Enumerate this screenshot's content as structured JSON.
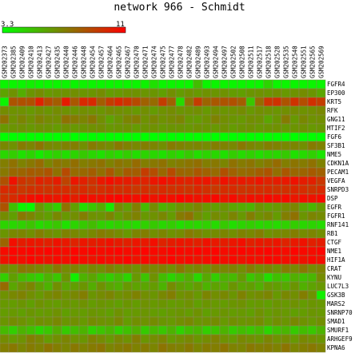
{
  "chart_data": {
    "type": "heatmap",
    "title": "network 966 - Schmidt",
    "color_scale": {
      "min": 3.3,
      "max": 11,
      "min_label": "3.3",
      "max_label": "11",
      "low_color": "#00ff00",
      "high_color": "#ff0000"
    },
    "columns": [
      "GSM202373",
      "GSM202385",
      "GSM202409",
      "GSM202410",
      "GSM202413",
      "GSM202427",
      "GSM202435",
      "GSM202440",
      "GSM202446",
      "GSM202448",
      "GSM202454",
      "GSM202457",
      "GSM202464",
      "GSM202465",
      "GSM202467",
      "GSM202470",
      "GSM202471",
      "GSM202474",
      "GSM202475",
      "GSM202477",
      "GSM202478",
      "GSM202482",
      "GSM202489",
      "GSM202493",
      "GSM202494",
      "GSM202497",
      "GSM202502",
      "GSM202508",
      "GSM202511",
      "GSM202517",
      "GSM202518",
      "GSM202528",
      "GSM202535",
      "GSM202540",
      "GSM202551",
      "GSM202565",
      "GSM202569"
    ],
    "rows": [
      "FGFR4",
      "EP300",
      "KRT5",
      "RFK",
      "GNG11",
      "MTIF2",
      "FGF6",
      "SF3B1",
      "NME5",
      "CDKN1A",
      "PECAM1",
      "VEGFA",
      "SNRPD3",
      "DSP",
      "EGFR",
      "FGFR1",
      "RNF141",
      "RB1",
      "CTGF",
      "NME1",
      "HIF1A",
      "CRAT",
      "KYNU",
      "LUC7L3",
      "GSK3B",
      "MARS2",
      "SNRNP70",
      "SMAD1",
      "SMURF1",
      "ARHGEF9",
      "KPNA6"
    ],
    "values": [
      [
        3.6,
        3.6,
        3.6,
        3.8,
        3.6,
        3.6,
        3.6,
        3.6,
        3.6,
        3.7,
        3.6,
        3.6,
        3.6,
        3.6,
        3.6,
        3.6,
        3.7,
        4.2,
        3.6,
        3.6,
        3.6,
        3.6,
        5.3,
        3.6,
        3.6,
        3.6,
        3.6,
        3.6,
        3.6,
        3.6,
        4.6,
        3.6,
        3.6,
        3.6,
        3.6,
        3.6,
        3.6
      ],
      [
        6.1,
        6.6,
        5.8,
        6.5,
        6.8,
        6.4,
        6.5,
        6.6,
        6.7,
        6.5,
        6.5,
        6.8,
        6.3,
        6.4,
        6.6,
        6.6,
        6.5,
        6.5,
        6.2,
        6.7,
        6.3,
        6.6,
        6.4,
        6.6,
        6.5,
        6.6,
        6.3,
        6.2,
        6.5,
        6.6,
        6.5,
        6.7,
        6.4,
        6.6,
        6.8,
        6.5,
        6.0
      ],
      [
        3.6,
        8.5,
        8.6,
        8.6,
        10.0,
        8.8,
        8.2,
        10.2,
        8.4,
        9.8,
        9.8,
        8.2,
        9.2,
        9.8,
        9.4,
        8.8,
        8.1,
        7.8,
        9.2,
        8.1,
        4.4,
        7.5,
        9.2,
        8.0,
        8.4,
        8.5,
        8.6,
        8.2,
        5.0,
        7.8,
        9.4,
        9.5,
        8.5,
        9.5,
        8.7,
        9.6,
        9.2
      ],
      [
        6.8,
        6.6,
        6.6,
        6.4,
        6.7,
        6.5,
        6.8,
        6.6,
        6.5,
        6.7,
        6.6,
        6.5,
        6.8,
        6.7,
        6.6,
        6.4,
        6.7,
        6.3,
        6.6,
        6.8,
        6.5,
        6.6,
        6.7,
        6.4,
        6.7,
        6.5,
        6.6,
        6.8,
        6.4,
        6.7,
        6.6,
        6.5,
        6.7,
        6.8,
        6.6,
        6.7,
        6.9
      ],
      [
        7.6,
        6.6,
        7.0,
        6.6,
        7.1,
        6.8,
        6.7,
        7.6,
        7.3,
        7.0,
        7.4,
        6.7,
        6.1,
        6.5,
        7.0,
        7.2,
        6.6,
        6.9,
        6.6,
        6.8,
        7.0,
        6.4,
        6.3,
        6.6,
        7.1,
        6.7,
        6.5,
        6.4,
        6.7,
        6.6,
        6.0,
        6.5,
        7.3,
        6.4,
        6.9,
        6.6,
        6.7
      ],
      [
        6.4,
        6.5,
        6.6,
        6.4,
        6.6,
        6.5,
        6.3,
        6.6,
        6.4,
        6.5,
        6.6,
        6.7,
        6.4,
        6.5,
        6.6,
        6.3,
        6.5,
        6.6,
        6.4,
        6.5,
        6.5,
        6.4,
        6.6,
        6.5,
        6.4,
        6.6,
        6.3,
        6.5,
        6.6,
        6.4,
        6.5,
        6.6,
        6.4,
        6.5,
        6.6,
        6.4,
        6.5
      ],
      [
        3.3,
        3.3,
        3.3,
        3.3,
        3.3,
        3.3,
        3.3,
        3.3,
        3.3,
        3.3,
        3.3,
        3.3,
        3.3,
        3.3,
        3.3,
        3.3,
        3.3,
        3.3,
        3.3,
        3.3,
        3.3,
        3.3,
        3.3,
        3.3,
        3.3,
        3.3,
        3.3,
        3.3,
        3.3,
        3.3,
        3.3,
        3.3,
        3.3,
        3.3,
        3.3,
        3.3,
        3.3
      ],
      [
        6.9,
        6.6,
        7.3,
        7.0,
        7.5,
        6.9,
        6.8,
        7.1,
        7.2,
        6.7,
        7.3,
        7.0,
        6.8,
        7.4,
        7.1,
        6.9,
        7.2,
        7.0,
        6.7,
        7.3,
        7.1,
        6.9,
        7.0,
        6.8,
        7.2,
        7.1,
        6.9,
        7.4,
        7.0,
        6.8,
        7.2,
        7.1,
        6.9,
        7.0,
        6.7,
        7.3,
        7.1
      ],
      [
        4.5,
        4.8,
        4.2,
        4.6,
        3.9,
        4.4,
        4.7,
        4.3,
        4.6,
        4.9,
        4.5,
        4.2,
        4.7,
        4.4,
        4.8,
        4.3,
        4.6,
        4.5,
        4.2,
        4.7,
        4.4,
        4.9,
        4.3,
        4.6,
        4.5,
        4.2,
        4.8,
        4.4,
        4.7,
        4.3,
        4.6,
        4.5,
        4.9,
        4.2,
        4.4,
        4.7,
        4.1
      ],
      [
        7.2,
        7.6,
        7.1,
        7.4,
        7.8,
        7.0,
        7.5,
        7.3,
        7.7,
        7.2,
        7.4,
        7.6,
        7.1,
        7.5,
        7.3,
        7.8,
        7.2,
        7.4,
        7.6,
        7.1,
        7.3,
        7.5,
        7.7,
        7.2,
        7.4,
        7.0,
        7.6,
        7.3,
        7.5,
        7.1,
        7.4,
        7.8,
        7.2,
        7.5,
        7.3,
        7.6,
        7.1
      ],
      [
        7.4,
        7.9,
        8.0,
        8.3,
        8.2,
        8.5,
        7.6,
        8.8,
        7.8,
        7.9,
        8.2,
        7.7,
        8.4,
        7.6,
        8.3,
        8.2,
        9.2,
        8.7,
        7.9,
        8.8,
        8.0,
        7.9,
        8.4,
        8.1,
        7.8,
        8.6,
        8.1,
        7.8,
        7.9,
        8.2,
        8.5,
        7.7,
        8.4,
        7.9,
        8.0,
        8.3,
        8.1
      ],
      [
        8.6,
        10.5,
        9.5,
        9.2,
        10.0,
        9.8,
        10.2,
        9.0,
        10.4,
        10.1,
        9.6,
        10.3,
        10.6,
        10.3,
        10.2,
        10.1,
        10.0,
        10.4,
        10.6,
        10.3,
        10.1,
        10.0,
        10.3,
        10.4,
        10.0,
        10.5,
        10.2,
        10.3,
        10.1,
        10.4,
        10.0,
        10.2,
        10.3,
        10.5,
        10.2,
        10.1,
        9.4
      ],
      [
        9.8,
        9.9,
        9.4,
        9.6,
        9.7,
        9.5,
        9.8,
        9.7,
        9.6,
        9.8,
        9.5,
        9.7,
        9.9,
        9.6,
        9.8,
        9.4,
        9.7,
        9.5,
        9.8,
        9.6,
        9.7,
        9.5,
        9.9,
        9.6,
        9.4,
        9.7,
        9.8,
        9.5,
        9.6,
        9.7,
        9.8,
        9.5,
        9.6,
        9.9,
        9.7,
        9.5,
        9.8
      ],
      [
        9.6,
        9.8,
        10.3,
        10.6,
        10.8,
        10.5,
        10.4,
        10.6,
        10.2,
        10.7,
        10.6,
        10.5,
        10.8,
        10.9,
        10.7,
        10.6,
        10.8,
        10.5,
        10.7,
        10.6,
        10.9,
        10.7,
        10.5,
        10.6,
        10.8,
        10.4,
        10.7,
        10.3,
        10.6,
        10.5,
        10.8,
        10.6,
        10.7,
        10.4,
        10.6,
        10.5,
        10.7
      ],
      [
        8.5,
        5.2,
        3.6,
        3.5,
        6.4,
        5.5,
        4.8,
        7.6,
        6.2,
        4.3,
        5.0,
        5.8,
        4.0,
        6.8,
        6.2,
        7.2,
        5.4,
        6.8,
        5.6,
        6.0,
        6.6,
        6.6,
        7.0,
        6.4,
        6.2,
        6.5,
        6.0,
        5.8,
        5.6,
        6.5,
        6.2,
        6.4,
        6.8,
        7.0,
        6.0,
        5.5,
        6.4
      ],
      [
        6.8,
        6.2,
        7.4,
        7.0,
        6.5,
        6.2,
        6.9,
        6.4,
        6.7,
        7.2,
        6.6,
        6.5,
        7.0,
        6.3,
        6.8,
        7.1,
        6.4,
        6.6,
        6.9,
        6.3,
        7.3,
        7.6,
        6.7,
        6.2,
        6.8,
        6.5,
        7.0,
        6.4,
        7.2,
        6.6,
        6.9,
        6.3,
        7.2,
        7.6,
        6.5,
        7.0,
        6.8
      ],
      [
        4.6,
        4.5,
        4.7,
        5.1,
        4.4,
        4.7,
        5.0,
        4.2,
        4.6,
        4.9,
        5.3,
        4.7,
        4.5,
        4.8,
        4.6,
        4.4,
        4.7,
        4.9,
        4.5,
        4.8,
        4.3,
        4.6,
        4.5,
        4.7,
        4.4,
        4.9,
        4.3,
        4.6,
        4.8,
        4.5,
        4.6,
        4.4,
        4.7,
        4.8,
        4.5,
        4.6,
        4.4
      ],
      [
        6.5,
        6.9,
        7.0,
        6.7,
        7.2,
        6.8,
        6.5,
        7.1,
        6.9,
        6.6,
        6.9,
        7.3,
        7.1,
        6.8,
        6.4,
        7.0,
        7.2,
        6.7,
        7.0,
        6.6,
        6.8,
        7.3,
        7.0,
        6.6,
        6.8,
        7.0,
        6.7,
        7.1,
        6.9,
        7.2,
        6.6,
        6.8,
        6.9,
        7.2,
        6.8,
        7.0,
        6.7
      ],
      [
        8.0,
        10.6,
        10.2,
        10.4,
        10.3,
        10.1,
        10.5,
        10.3,
        10.0,
        10.4,
        10.2,
        10.3,
        10.5,
        10.2,
        10.1,
        10.4,
        10.3,
        10.6,
        10.0,
        10.2,
        10.4,
        10.3,
        10.1,
        10.5,
        10.3,
        10.2,
        10.4,
        10.6,
        10.1,
        10.3,
        10.2,
        10.4,
        10.0,
        10.3,
        10.5,
        10.1,
        10.2
      ],
      [
        10.7,
        10.9,
        10.8,
        10.9,
        10.7,
        10.9,
        10.8,
        10.7,
        10.9,
        10.8,
        10.9,
        10.7,
        10.8,
        10.9,
        10.7,
        10.8,
        10.9,
        10.8,
        10.7,
        10.9,
        10.8,
        10.7,
        10.9,
        10.8,
        10.9,
        10.7,
        10.8,
        10.9,
        10.7,
        10.8,
        10.9,
        10.8,
        10.7,
        10.9,
        10.8,
        10.7,
        10.9
      ],
      [
        10.5,
        10.8,
        10.6,
        10.9,
        10.7,
        10.5,
        10.8,
        10.6,
        10.9,
        10.7,
        10.5,
        10.8,
        10.6,
        10.7,
        10.9,
        10.5,
        10.8,
        10.6,
        10.7,
        10.9,
        10.6,
        10.8,
        10.5,
        10.7,
        10.9,
        10.6,
        10.8,
        10.5,
        10.7,
        10.6,
        10.9,
        10.8,
        10.6,
        10.7,
        10.5,
        10.8,
        10.6
      ],
      [
        7.0,
        6.6,
        7.4,
        7.2,
        6.9,
        6.6,
        7.4,
        6.8,
        7.1,
        6.5,
        6.9,
        6.7,
        7.2,
        6.8,
        7.0,
        6.6,
        7.3,
        6.9,
        7.1,
        6.7,
        7.4,
        6.8,
        7.0,
        6.6,
        7.2,
        6.9,
        7.1,
        6.7,
        7.3,
        6.8,
        7.0,
        6.6,
        7.2,
        6.9,
        7.4,
        6.8,
        7.1
      ],
      [
        4.8,
        6.2,
        5.4,
        5.0,
        4.7,
        5.6,
        5.0,
        6.5,
        3.8,
        5.6,
        6.0,
        5.2,
        4.8,
        5.4,
        4.6,
        6.4,
        5.1,
        6.6,
        5.3,
        4.6,
        5.2,
        5.8,
        4.5,
        5.9,
        4.8,
        5.6,
        5.4,
        6.3,
        5.0,
        5.6,
        4.3,
        5.2,
        5.0,
        5.7,
        5.2,
        5.5,
        6.8
      ],
      [
        7.8,
        6.0,
        6.6,
        7.0,
        6.2,
        5.6,
        6.7,
        6.0,
        6.2,
        6.5,
        5.8,
        6.6,
        6.0,
        5.7,
        6.4,
        6.1,
        6.0,
        6.3,
        5.6,
        6.8,
        6.2,
        5.9,
        6.3,
        5.6,
        6.1,
        5.8,
        6.5,
        6.0,
        6.2,
        5.7,
        6.4,
        6.2,
        5.9,
        6.5,
        5.7,
        6.1,
        6.4
      ],
      [
        6.6,
        6.9,
        7.1,
        6.7,
        6.4,
        6.8,
        7.0,
        6.6,
        6.9,
        7.2,
        6.5,
        6.8,
        7.0,
        6.6,
        6.8,
        7.1,
        6.7,
        6.5,
        6.9,
        7.2,
        6.6,
        6.8,
        6.4,
        7.0,
        6.7,
        6.9,
        6.5,
        7.1,
        6.6,
        6.8,
        7.0,
        6.4,
        6.9,
        6.7,
        7.2,
        6.6,
        3.8
      ],
      [
        6.4,
        6.3,
        6.5,
        6.2,
        6.6,
        6.4,
        6.3,
        6.5,
        6.4,
        6.6,
        6.3,
        6.5,
        6.4,
        6.2,
        6.5,
        6.3,
        6.6,
        6.4,
        6.5,
        6.3,
        6.4,
        6.6,
        6.2,
        6.5,
        6.4,
        6.3,
        6.5,
        6.6,
        6.3,
        6.4,
        6.2,
        6.5,
        6.4,
        6.6,
        6.3,
        6.5,
        6.4
      ],
      [
        6.3,
        6.4,
        6.2,
        6.5,
        6.3,
        6.4,
        6.6,
        6.2,
        6.4,
        6.3,
        6.5,
        6.4,
        6.2,
        6.6,
        6.3,
        6.4,
        6.5,
        6.3,
        6.2,
        6.4,
        6.5,
        6.3,
        6.6,
        6.2,
        6.4,
        6.5,
        6.3,
        6.4,
        6.2,
        6.6,
        6.3,
        6.5,
        6.4,
        6.2,
        6.3,
        6.5,
        6.4
      ],
      [
        6.5,
        6.8,
        6.6,
        6.3,
        6.7,
        6.6,
        6.9,
        6.5,
        6.7,
        6.4,
        6.8,
        6.6,
        6.5,
        6.9,
        6.3,
        6.7,
        6.6,
        6.8,
        6.5,
        6.4,
        6.7,
        6.9,
        6.5,
        6.6,
        6.8,
        6.4,
        6.7,
        6.5,
        6.6,
        6.8,
        6.3,
        6.7,
        6.5,
        6.9,
        6.6,
        6.4,
        6.7
      ],
      [
        5.4,
        4.8,
        5.6,
        5.2,
        4.6,
        5.0,
        5.8,
        4.9,
        5.3,
        5.6,
        4.7,
        5.1,
        5.5,
        4.8,
        5.2,
        5.7,
        4.9,
        5.4,
        5.0,
        5.6,
        4.7,
        5.3,
        5.5,
        4.8,
        5.1,
        5.6,
        4.9,
        5.3,
        5.0,
        5.4,
        4.6,
        5.2,
        5.5,
        4.9,
        5.3,
        5.0,
        5.6
      ],
      [
        6.8,
        6.4,
        6.6,
        7.2,
        6.9,
        6.3,
        6.7,
        7.0,
        6.6,
        6.5,
        7.1,
        6.8,
        6.4,
        6.9,
        6.6,
        7.2,
        6.5,
        6.8,
        7.0,
        6.4,
        6.7,
        6.9,
        6.5,
        6.8,
        7.1,
        6.6,
        6.4,
        6.9,
        6.7,
        6.5,
        7.0,
        6.6,
        6.8,
        6.4,
        6.9,
        6.7,
        6.5
      ],
      [
        7.2,
        7.4,
        7.0,
        7.3,
        7.1,
        7.5,
        7.2,
        7.0,
        7.4,
        7.1,
        7.3,
        7.5,
        7.0,
        7.2,
        7.4,
        7.1,
        7.3,
        7.0,
        7.5,
        7.2,
        7.1,
        7.4,
        7.0,
        7.3,
        7.2,
        7.5,
        7.1,
        7.0,
        7.4,
        7.2,
        7.3,
        7.1,
        7.5,
        7.0,
        7.2,
        7.4,
        7.1
      ]
    ]
  }
}
